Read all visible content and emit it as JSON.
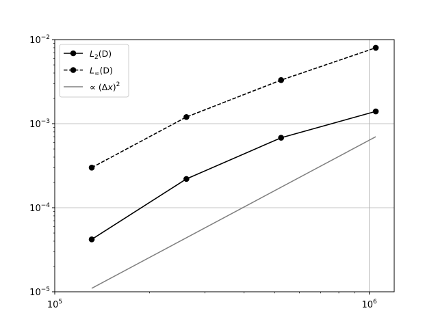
{
  "chart_data": {
    "type": "line",
    "title": "",
    "xlabel": "",
    "ylabel": "",
    "xscale": "log",
    "yscale": "log",
    "xlim": [
      100000,
      1200000
    ],
    "ylim": [
      1e-05,
      0.01
    ],
    "x_ticks": [
      {
        "value": 100000,
        "base": "10",
        "exp": "5"
      },
      {
        "value": 1000000,
        "base": "10",
        "exp": "6"
      }
    ],
    "y_ticks": [
      {
        "value": 1e-05,
        "base": "10",
        "exp": "−5"
      },
      {
        "value": 0.0001,
        "base": "10",
        "exp": "−4"
      },
      {
        "value": 0.001,
        "base": "10",
        "exp": "−3"
      },
      {
        "value": 0.01,
        "base": "10",
        "exp": "−2"
      }
    ],
    "grid": "major",
    "legend_position": "top-left",
    "series": [
      {
        "name": "L2(D)",
        "legend": {
          "base": "L",
          "sub": "2",
          "rest": "(D)"
        },
        "color": "#000000",
        "style": "solid",
        "marker": "circle",
        "x": [
          131072,
          262144,
          524288,
          1048576
        ],
        "y": [
          4.2e-05,
          0.00022,
          0.00068,
          0.0014
        ]
      },
      {
        "name": "L∞(D)",
        "legend": {
          "base": "L",
          "sub": "∞",
          "rest": "(D)"
        },
        "color": "#000000",
        "style": "dashed",
        "marker": "circle",
        "x": [
          131072,
          262144,
          524288,
          1048576
        ],
        "y": [
          0.0003,
          0.0012,
          0.0033,
          0.008
        ]
      },
      {
        "name": "∝ (Δx)^2",
        "legend": {
          "pre": "∝ (Δ",
          "var": "x",
          "post": ")",
          "sup": "2"
        },
        "color": "#808080",
        "style": "solid",
        "marker": "none",
        "x": [
          131072,
          1048576
        ],
        "y": [
          1.1e-05,
          0.0007
        ]
      }
    ]
  }
}
